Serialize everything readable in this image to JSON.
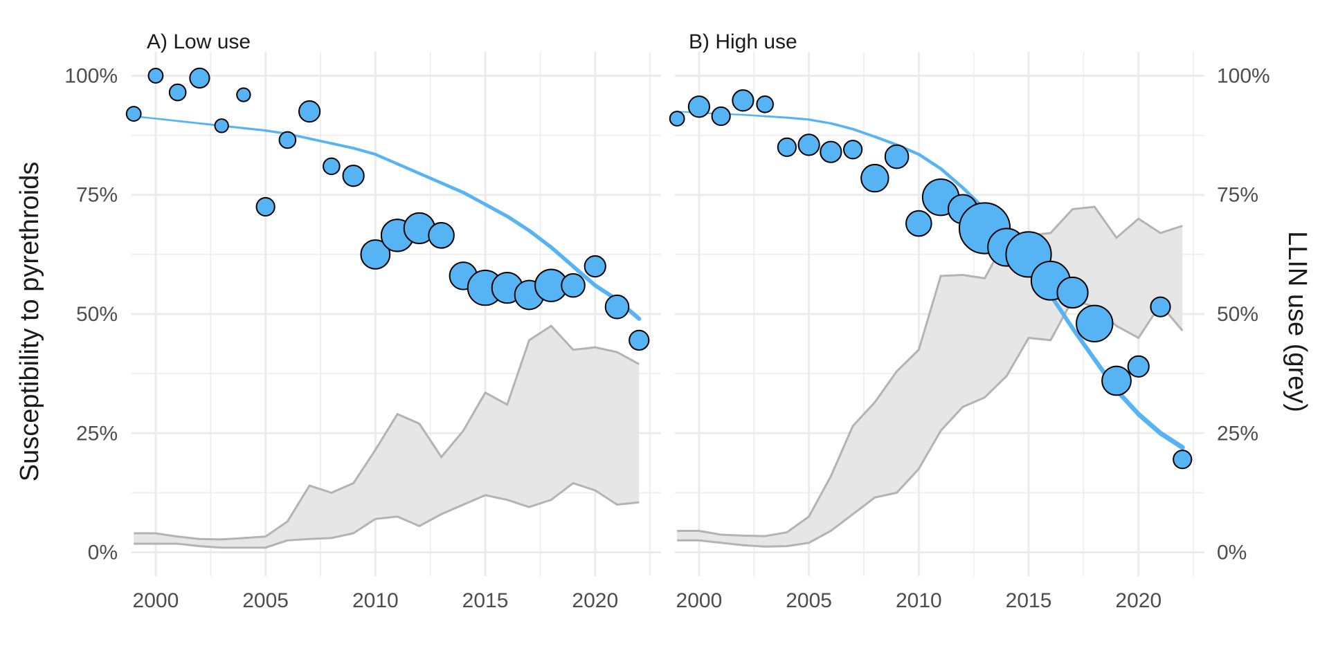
{
  "chart_data": {
    "type": "scatter",
    "ylabel": "Susceptibility to pyrethroids",
    "y2label": "LLIN use (grey)",
    "xlim": [
      1998.9,
      2023.0
    ],
    "ylim": [
      -0.05,
      1.05
    ],
    "x_ticks": [
      2000,
      2005,
      2010,
      2015,
      2020
    ],
    "x_tick_labels": [
      "2000",
      "2005",
      "2010",
      "2015",
      "2020"
    ],
    "y_ticks": [
      0,
      0.25,
      0.5,
      0.75,
      1.0
    ],
    "y_tick_labels": [
      "0%",
      "25%",
      "50%",
      "75%",
      "100%"
    ],
    "y2_tick_labels": [
      "0%",
      "25%",
      "50%",
      "75%",
      "100%"
    ],
    "grid": true,
    "colors": {
      "points": "#56B4F4",
      "fit_line": "#56B4F4",
      "ribbon_fill": "#e6e6e6",
      "ribbon_line": "#b3b3b3",
      "grid": "#ebebeb"
    },
    "panels": [
      {
        "title": "A) Low use",
        "points": [
          {
            "x": 1999,
            "y": 0.92,
            "n": 1
          },
          {
            "x": 2000,
            "y": 1.0,
            "n": 1
          },
          {
            "x": 2001,
            "y": 0.965,
            "n": 1.5
          },
          {
            "x": 2002,
            "y": 0.995,
            "n": 2.5
          },
          {
            "x": 2003,
            "y": 0.895,
            "n": 0.8
          },
          {
            "x": 2004,
            "y": 0.96,
            "n": 0.8
          },
          {
            "x": 2005,
            "y": 0.725,
            "n": 2
          },
          {
            "x": 2006,
            "y": 0.865,
            "n": 1.5
          },
          {
            "x": 2007,
            "y": 0.925,
            "n": 3
          },
          {
            "x": 2008,
            "y": 0.81,
            "n": 1.5
          },
          {
            "x": 2009,
            "y": 0.79,
            "n": 3
          },
          {
            "x": 2010,
            "y": 0.625,
            "n": 7
          },
          {
            "x": 2011,
            "y": 0.665,
            "n": 9
          },
          {
            "x": 2012,
            "y": 0.68,
            "n": 8
          },
          {
            "x": 2013,
            "y": 0.665,
            "n": 5
          },
          {
            "x": 2014,
            "y": 0.58,
            "n": 6
          },
          {
            "x": 2015,
            "y": 0.555,
            "n": 11
          },
          {
            "x": 2016,
            "y": 0.555,
            "n": 8
          },
          {
            "x": 2017,
            "y": 0.54,
            "n": 7
          },
          {
            "x": 2018,
            "y": 0.56,
            "n": 9
          },
          {
            "x": 2019,
            "y": 0.56,
            "n": 4
          },
          {
            "x": 2020,
            "y": 0.6,
            "n": 3
          },
          {
            "x": 2021,
            "y": 0.515,
            "n": 4
          },
          {
            "x": 2022,
            "y": 0.445,
            "n": 2.5
          }
        ],
        "fit": {
          "x": [
            1999,
            2000,
            2001,
            2002,
            2003,
            2004,
            2005,
            2006,
            2007,
            2008,
            2009,
            2010,
            2011,
            2012,
            2013,
            2014,
            2015,
            2016,
            2017,
            2018,
            2019,
            2020,
            2021,
            2022
          ],
          "y": [
            0.915,
            0.91,
            0.905,
            0.9,
            0.895,
            0.89,
            0.885,
            0.878,
            0.868,
            0.858,
            0.848,
            0.835,
            0.815,
            0.795,
            0.775,
            0.755,
            0.73,
            0.705,
            0.675,
            0.64,
            0.6,
            0.56,
            0.53,
            0.49
          ],
          "width_start": 2.5,
          "width_end": 6
        },
        "ribbon": {
          "x": [
            1999,
            2000,
            2001,
            2002,
            2003,
            2004,
            2005,
            2006,
            2007,
            2008,
            2009,
            2010,
            2011,
            2012,
            2013,
            2014,
            2015,
            2016,
            2017,
            2018,
            2019,
            2020,
            2021,
            2022
          ],
          "lower": [
            0.018,
            0.018,
            0.018,
            0.013,
            0.01,
            0.01,
            0.01,
            0.025,
            0.028,
            0.03,
            0.04,
            0.07,
            0.075,
            0.055,
            0.08,
            0.1,
            0.12,
            0.11,
            0.095,
            0.11,
            0.145,
            0.13,
            0.1,
            0.105
          ],
          "upper": [
            0.04,
            0.04,
            0.033,
            0.028,
            0.027,
            0.03,
            0.033,
            0.065,
            0.14,
            0.125,
            0.145,
            0.215,
            0.29,
            0.27,
            0.2,
            0.255,
            0.335,
            0.31,
            0.445,
            0.475,
            0.425,
            0.43,
            0.42,
            0.395
          ]
        }
      },
      {
        "title": "B) High use",
        "points": [
          {
            "x": 1999,
            "y": 0.91,
            "n": 1
          },
          {
            "x": 2000,
            "y": 0.935,
            "n": 3
          },
          {
            "x": 2001,
            "y": 0.915,
            "n": 2
          },
          {
            "x": 2002,
            "y": 0.948,
            "n": 3
          },
          {
            "x": 2003,
            "y": 0.94,
            "n": 1.5
          },
          {
            "x": 2004,
            "y": 0.85,
            "n": 2
          },
          {
            "x": 2005,
            "y": 0.855,
            "n": 3
          },
          {
            "x": 2006,
            "y": 0.84,
            "n": 3
          },
          {
            "x": 2007,
            "y": 0.845,
            "n": 2
          },
          {
            "x": 2008,
            "y": 0.785,
            "n": 6
          },
          {
            "x": 2009,
            "y": 0.83,
            "n": 4
          },
          {
            "x": 2010,
            "y": 0.69,
            "n": 5
          },
          {
            "x": 2011,
            "y": 0.745,
            "n": 12
          },
          {
            "x": 2012,
            "y": 0.72,
            "n": 7
          },
          {
            "x": 2013,
            "y": 0.68,
            "n": 26
          },
          {
            "x": 2014,
            "y": 0.64,
            "n": 13
          },
          {
            "x": 2015,
            "y": 0.625,
            "n": 20
          },
          {
            "x": 2016,
            "y": 0.57,
            "n": 14
          },
          {
            "x": 2017,
            "y": 0.545,
            "n": 8
          },
          {
            "x": 2018,
            "y": 0.48,
            "n": 12
          },
          {
            "x": 2019,
            "y": 0.36,
            "n": 7
          },
          {
            "x": 2020,
            "y": 0.39,
            "n": 3
          },
          {
            "x": 2021,
            "y": 0.515,
            "n": 2.5
          },
          {
            "x": 2022,
            "y": 0.195,
            "n": 2
          }
        ],
        "fit": {
          "x": [
            1999,
            2000,
            2001,
            2002,
            2003,
            2004,
            2005,
            2006,
            2007,
            2008,
            2009,
            2010,
            2011,
            2012,
            2013,
            2014,
            2015,
            2016,
            2017,
            2018,
            2019,
            2020,
            2021,
            2022
          ],
          "y": [
            0.925,
            0.922,
            0.92,
            0.918,
            0.915,
            0.912,
            0.908,
            0.9,
            0.888,
            0.872,
            0.855,
            0.835,
            0.805,
            0.765,
            0.72,
            0.665,
            0.605,
            0.54,
            0.47,
            0.405,
            0.34,
            0.29,
            0.25,
            0.22
          ],
          "width_start": 2,
          "width_end": 7
        },
        "ribbon": {
          "x": [
            1999,
            2000,
            2001,
            2002,
            2003,
            2004,
            2005,
            2006,
            2007,
            2008,
            2009,
            2010,
            2011,
            2012,
            2013,
            2014,
            2015,
            2016,
            2017,
            2018,
            2019,
            2020,
            2021,
            2022
          ],
          "lower": [
            0.025,
            0.025,
            0.02,
            0.015,
            0.012,
            0.013,
            0.02,
            0.045,
            0.08,
            0.115,
            0.125,
            0.175,
            0.255,
            0.305,
            0.325,
            0.37,
            0.45,
            0.445,
            0.53,
            0.515,
            0.475,
            0.45,
            0.52,
            0.465
          ],
          "upper": [
            0.045,
            0.045,
            0.037,
            0.035,
            0.034,
            0.042,
            0.075,
            0.16,
            0.265,
            0.315,
            0.38,
            0.425,
            0.58,
            0.582,
            0.575,
            0.66,
            0.665,
            0.67,
            0.72,
            0.725,
            0.66,
            0.7,
            0.67,
            0.685
          ]
        }
      }
    ]
  }
}
